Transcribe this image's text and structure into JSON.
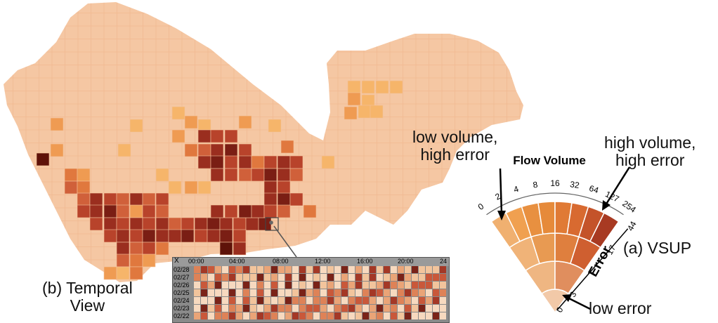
{
  "labels": {
    "low_vol_high_err": [
      "low volume,",
      "high error"
    ],
    "high_vol_high_err": [
      "high volume,",
      "high error"
    ],
    "vsup": "(a) VSUP",
    "temporal_view": [
      "(b) Temporal",
      "View"
    ],
    "low_error": "low error"
  },
  "legend": {
    "title": "Flow Volume",
    "volume_ticks": [
      "0",
      "2",
      "4",
      "8",
      "16",
      "32",
      "64",
      "127",
      "254"
    ],
    "error_label": "Error",
    "error_ticks": [
      "0",
      "3",
      "7",
      "17",
      "44"
    ],
    "colors": [
      [
        "#f0b070",
        "#f0a050",
        "#e89040",
        "#e68a3a",
        "#e07a35",
        "#d86a30",
        "#c4532a",
        "#a83a22"
      ],
      [
        "#f0b378",
        "#e89a52",
        "#df7f3e",
        "#cf5f30"
      ],
      [
        "#efb682",
        "#e08e5e"
      ],
      [
        "#f2c9a8"
      ]
    ]
  },
  "temporal": {
    "close": "X",
    "times": [
      "00:00",
      "04:00",
      "08:00",
      "12:00",
      "16:00",
      "20:00",
      "24"
    ],
    "dates": [
      "02/28",
      "02/27",
      "02/26",
      "02/25",
      "02/24",
      "02/23",
      "02/22"
    ],
    "palette": [
      "#f7d9bf",
      "#f2c49c",
      "#eaa477",
      "#de8257",
      "#c9583a",
      "#a43826",
      "#7a2318"
    ]
  },
  "map": {
    "base_color": "#f5c7a3",
    "highlight_colors": [
      "#f6b56a",
      "#ef9b52",
      "#e0783e",
      "#d0603a",
      "#b8432b",
      "#9a2e1f",
      "#7a1e14",
      "#5e1209"
    ]
  }
}
